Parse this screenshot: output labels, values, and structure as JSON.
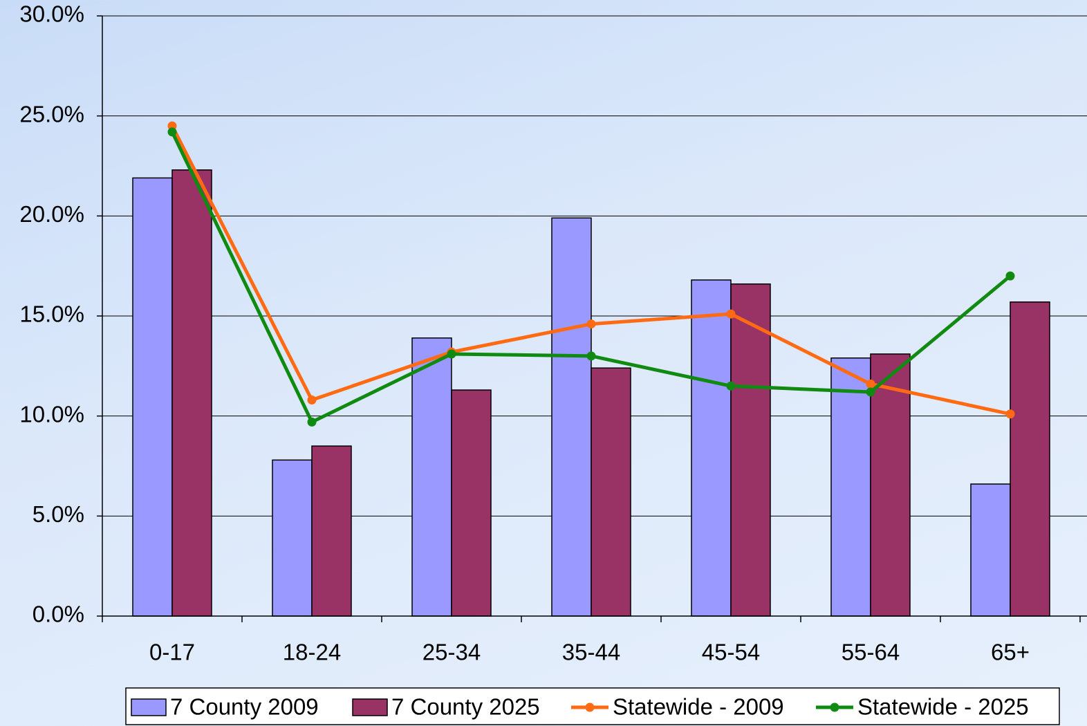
{
  "chart_data": {
    "type": "bar",
    "categories": [
      "0-17",
      "18-24",
      "25-34",
      "35-44",
      "45-54",
      "55-64",
      "65+"
    ],
    "series": [
      {
        "name": "7 County 2009",
        "type": "bar",
        "color": "#9999ff",
        "values": [
          21.9,
          7.8,
          13.9,
          19.9,
          16.8,
          12.9,
          6.6
        ]
      },
      {
        "name": "7 County 2025",
        "type": "bar",
        "color": "#993366",
        "values": [
          22.3,
          8.5,
          11.3,
          12.4,
          16.6,
          13.1,
          15.7
        ]
      },
      {
        "name": "Statewide - 2009",
        "type": "line",
        "color": "#ff6a13",
        "values": [
          24.5,
          10.8,
          13.2,
          14.6,
          15.1,
          11.6,
          10.1
        ]
      },
      {
        "name": "Statewide - 2025",
        "type": "line",
        "color": "#108a10",
        "values": [
          24.2,
          9.7,
          13.1,
          13.0,
          11.5,
          11.2,
          17.0
        ]
      }
    ],
    "ylim": [
      0,
      30
    ],
    "yticks": [
      {
        "value": 0,
        "label": "0.0%"
      },
      {
        "value": 5,
        "label": "5.0%"
      },
      {
        "value": 10,
        "label": "10.0%"
      },
      {
        "value": 15,
        "label": "15.0%"
      },
      {
        "value": 20,
        "label": "20.0%"
      },
      {
        "value": 25,
        "label": "25.0%"
      },
      {
        "value": 30,
        "label": "30.0%"
      }
    ],
    "grid": true,
    "legend": "bottom"
  }
}
